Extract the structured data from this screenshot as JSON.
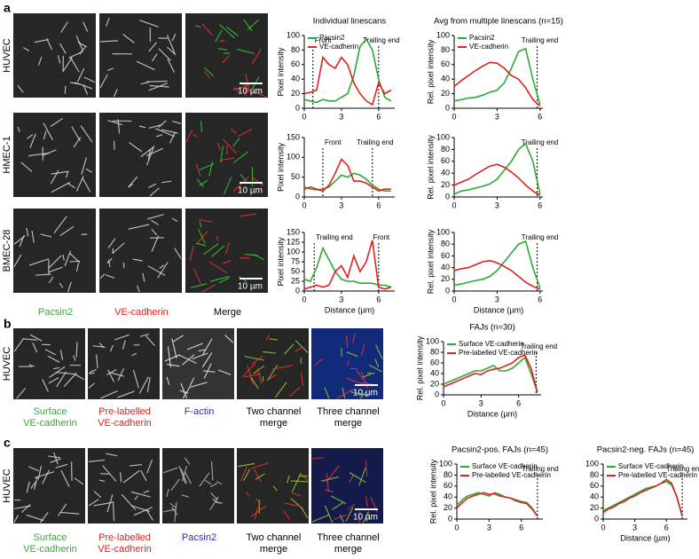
{
  "figure": {
    "panels": [
      {
        "label": "a",
        "rows": [
          "HUVEC",
          "HMEC-1",
          "BMEC-28"
        ],
        "images": [
          {
            "lines": [
              "Pacsin2"
            ],
            "color": "#3aa63a"
          },
          {
            "lines": [
              "VE-cadherin"
            ],
            "color": "#e0221e"
          },
          {
            "lines": [
              "Merge"
            ],
            "color": "#000000"
          }
        ]
      },
      {
        "label": "b",
        "rows": [
          "HUVEC"
        ],
        "images": [
          {
            "lines": [
              "Surface",
              "VE-cadherin"
            ],
            "color": "#3aa63a"
          },
          {
            "lines": [
              "Pre-labelled",
              "VE-cadherin"
            ],
            "color": "#e0221e"
          },
          {
            "lines": [
              "F-actin"
            ],
            "color": "#2b2bb0"
          },
          {
            "lines": [
              "Two channel",
              "merge"
            ],
            "color": "#000000"
          },
          {
            "lines": [
              "Three channel",
              "merge"
            ],
            "color": "#000000"
          }
        ]
      },
      {
        "label": "c",
        "rows": [
          "HUVEC"
        ],
        "images": [
          {
            "lines": [
              "Surface",
              "VE-cadherin"
            ],
            "color": "#3aa63a"
          },
          {
            "lines": [
              "Pre-labelled",
              "VE-cadherin"
            ],
            "color": "#e0221e"
          },
          {
            "lines": [
              "Pacsin2"
            ],
            "color": "#2b2bb0"
          },
          {
            "lines": [
              "Two channel",
              "merge"
            ],
            "color": "#000000"
          },
          {
            "lines": [
              "Three channel",
              "merge"
            ],
            "color": "#000000"
          }
        ]
      }
    ],
    "scale_bars": [
      "10 µm",
      "10 µm",
      "10 µm",
      "10 µm",
      "10 µm"
    ]
  },
  "chart_data": [
    {
      "type": "line",
      "title": "Individual linescans",
      "ylabel": "Pixel intensity",
      "x": [
        0,
        0.5,
        1,
        1.5,
        2,
        2.5,
        3,
        3.5,
        4,
        4.5,
        5,
        5.5,
        6,
        6.5,
        7
      ],
      "xlim": [
        0,
        7.3
      ],
      "xticks": [
        0,
        3,
        6
      ],
      "ylim": [
        0,
        100
      ],
      "yticks": [
        0,
        20,
        40,
        60,
        80,
        100
      ],
      "series": [
        {
          "name": "Pacsin2",
          "color": "#2ea836",
          "values": [
            12,
            10,
            8,
            12,
            10,
            10,
            15,
            20,
            45,
            85,
            95,
            80,
            40,
            15,
            10
          ]
        },
        {
          "name": "VE-cadherin",
          "color": "#e0221e",
          "values": [
            20,
            22,
            25,
            70,
            60,
            55,
            70,
            60,
            35,
            20,
            10,
            5,
            35,
            20,
            25
          ]
        }
      ],
      "annotations": [
        {
          "text": "Front",
          "x": 0.7
        },
        {
          "text": "Trailing end",
          "x": 6
        }
      ]
    },
    {
      "type": "line",
      "title": "Avg from multiple linescans (n=15)",
      "ylabel": "Rel. pixel intensity",
      "x": [
        0,
        0.5,
        1,
        1.5,
        2,
        2.5,
        3,
        3.5,
        4,
        4.5,
        5,
        5.5,
        6
      ],
      "xlim": [
        0,
        6.2
      ],
      "xticks": [
        0,
        3,
        6
      ],
      "ylim": [
        0,
        100
      ],
      "yticks": [
        0,
        20,
        40,
        60,
        80,
        100
      ],
      "series": [
        {
          "name": "Pacsin2",
          "color": "#2ea836",
          "values": [
            10,
            12,
            14,
            15,
            18,
            22,
            25,
            35,
            55,
            78,
            82,
            40,
            5
          ]
        },
        {
          "name": "VE-cadherin",
          "color": "#e0221e",
          "values": [
            30,
            38,
            45,
            52,
            58,
            63,
            62,
            55,
            45,
            40,
            28,
            12,
            3
          ]
        }
      ],
      "annotations": [
        {
          "text": "Trailing end",
          "x": 5.8
        }
      ]
    },
    {
      "type": "line",
      "ylabel": "Pixel intensity",
      "x": [
        0,
        0.5,
        1,
        1.5,
        2,
        2.5,
        3,
        3.5,
        4,
        4.5,
        5,
        5.5,
        6,
        6.5,
        7
      ],
      "xlim": [
        0,
        7.3
      ],
      "xticks": [
        0,
        3,
        6
      ],
      "ylim": [
        0,
        150
      ],
      "yticks": [
        0,
        50,
        100,
        150
      ],
      "series": [
        {
          "color": "#2ea836",
          "values": [
            25,
            20,
            18,
            20,
            25,
            40,
            55,
            50,
            60,
            55,
            45,
            30,
            20,
            15,
            15
          ]
        },
        {
          "color": "#e0221e",
          "values": [
            20,
            25,
            20,
            15,
            30,
            60,
            95,
            80,
            40,
            40,
            35,
            25,
            15,
            20,
            20
          ]
        }
      ],
      "annotations": [
        {
          "text": "Front",
          "x": 1.5
        },
        {
          "text": "Trailing end",
          "x": 5.5
        }
      ]
    },
    {
      "type": "line",
      "ylabel": "Rel. pixel intensity",
      "x": [
        0,
        0.5,
        1,
        1.5,
        2,
        2.5,
        3,
        3.5,
        4,
        4.5,
        5,
        5.5,
        6
      ],
      "xlim": [
        0,
        6.2
      ],
      "xticks": [
        0,
        3,
        6
      ],
      "ylim": [
        0,
        100
      ],
      "yticks": [
        0,
        20,
        40,
        60,
        80,
        100
      ],
      "series": [
        {
          "color": "#2ea836",
          "values": [
            5,
            10,
            12,
            15,
            18,
            22,
            30,
            45,
            60,
            80,
            90,
            60,
            5
          ]
        },
        {
          "color": "#e0221e",
          "values": [
            20,
            25,
            30,
            38,
            45,
            52,
            55,
            50,
            42,
            32,
            20,
            10,
            3
          ]
        }
      ],
      "annotations": [
        {
          "text": "Trailing end",
          "x": 5.8
        }
      ]
    },
    {
      "type": "line",
      "ylabel": "Pixel intensity",
      "xlabel": "Distance (µm)",
      "x": [
        0,
        0.5,
        1,
        1.5,
        2,
        2.5,
        3,
        3.5,
        4,
        4.5,
        5,
        5.5,
        6,
        6.5,
        7
      ],
      "xlim": [
        0,
        7.3
      ],
      "xticks": [
        0,
        3,
        6
      ],
      "ylim": [
        0,
        150
      ],
      "yticks": [
        0,
        25,
        50,
        75,
        100,
        125,
        150
      ],
      "series": [
        {
          "color": "#2ea836",
          "values": [
            30,
            25,
            60,
            110,
            80,
            50,
            30,
            25,
            25,
            20,
            20,
            20,
            15,
            15,
            10
          ]
        },
        {
          "color": "#e0221e",
          "values": [
            5,
            10,
            15,
            10,
            15,
            50,
            65,
            35,
            90,
            50,
            75,
            130,
            10,
            5,
            10
          ]
        }
      ],
      "annotations": [
        {
          "text": "Trailing end",
          "x": 0.8
        },
        {
          "text": "Front",
          "x": 6
        }
      ]
    },
    {
      "type": "line",
      "ylabel": "Rel. pixel intensity",
      "xlabel": "Distance (µm)",
      "x": [
        0,
        0.5,
        1,
        1.5,
        2,
        2.5,
        3,
        3.5,
        4,
        4.5,
        5,
        5.5,
        6
      ],
      "xlim": [
        0,
        6.2
      ],
      "xticks": [
        0,
        3,
        6
      ],
      "ylim": [
        0,
        100
      ],
      "yticks": [
        0,
        20,
        40,
        60,
        80,
        100
      ],
      "series": [
        {
          "color": "#2ea836",
          "values": [
            10,
            12,
            15,
            18,
            20,
            25,
            35,
            50,
            65,
            80,
            85,
            40,
            5
          ]
        },
        {
          "color": "#e0221e",
          "values": [
            35,
            38,
            40,
            45,
            50,
            52,
            48,
            42,
            35,
            25,
            15,
            8,
            3
          ]
        }
      ],
      "annotations": [
        {
          "text": "Trailing end",
          "x": 5.8
        }
      ]
    },
    {
      "type": "line",
      "title": "FAJs (n=30)",
      "ylabel": "Rel. pixel intensity",
      "xlabel": "Distance (µm)",
      "x": [
        0,
        0.5,
        1,
        1.5,
        2,
        2.5,
        3,
        3.5,
        4,
        4.5,
        5,
        5.5,
        6,
        6.5,
        7,
        7.5
      ],
      "xlim": [
        0,
        7.8
      ],
      "xticks": [
        0,
        3,
        6
      ],
      "ylim": [
        0,
        100
      ],
      "yticks": [
        0,
        20,
        40,
        60,
        80,
        100
      ],
      "series": [
        {
          "name": "Surface VE-cadherin",
          "color": "#2ea836",
          "values": [
            20,
            25,
            30,
            35,
            40,
            45,
            45,
            50,
            55,
            45,
            45,
            50,
            60,
            70,
            40,
            5
          ]
        },
        {
          "name": "Pre-labelled VE-cadherin",
          "color": "#e0221e",
          "values": [
            15,
            20,
            25,
            30,
            35,
            40,
            38,
            45,
            48,
            50,
            55,
            60,
            70,
            75,
            50,
            5
          ]
        }
      ],
      "annotations": [
        {
          "text": "Trailing end",
          "x": 7.4
        }
      ]
    },
    {
      "type": "line",
      "title": "Pacsin2-pos. FAJs (n=45)",
      "ylabel": "Rel. pixel intensity",
      "x": [
        0,
        0.5,
        1,
        1.5,
        2,
        2.5,
        3,
        3.5,
        4,
        4.5,
        5,
        5.5,
        6,
        6.5,
        7,
        7.5
      ],
      "xlim": [
        0,
        8
      ],
      "xticks": [
        0,
        3,
        6
      ],
      "ylim": [
        0,
        100
      ],
      "yticks": [
        0,
        20,
        40,
        60,
        80,
        100
      ],
      "series": [
        {
          "name": "Surface VE-cadherin",
          "color": "#2ea836",
          "values": [
            25,
            35,
            42,
            45,
            48,
            45,
            42,
            48,
            45,
            40,
            38,
            35,
            32,
            30,
            20,
            5
          ]
        },
        {
          "name": "Pre-labelled VE-cadherin",
          "color": "#e0221e",
          "values": [
            20,
            30,
            38,
            42,
            45,
            48,
            45,
            46,
            42,
            40,
            38,
            33,
            30,
            28,
            18,
            5
          ]
        }
      ],
      "annotations": [
        {
          "text": "Trailing end",
          "x": 7.5
        }
      ]
    },
    {
      "type": "line",
      "title": "Pacsin2-neg. FAJs (n=45)",
      "xlabel": "Distance (µm)",
      "x": [
        0,
        0.5,
        1,
        1.5,
        2,
        2.5,
        3,
        3.5,
        4,
        4.5,
        5,
        5.5,
        6,
        6.5,
        7,
        7.5
      ],
      "xlim": [
        0,
        8
      ],
      "xticks": [
        0,
        3,
        6
      ],
      "ylim": [
        0,
        100
      ],
      "yticks": [
        0,
        20,
        40,
        60,
        80,
        100
      ],
      "series": [
        {
          "name": "Surface VE-cadherin",
          "color": "#2ea836",
          "values": [
            15,
            20,
            25,
            30,
            35,
            40,
            45,
            50,
            55,
            58,
            60,
            65,
            68,
            62,
            40,
            5
          ]
        },
        {
          "name": "Pre-labelled VE-cadherin",
          "color": "#e0221e",
          "values": [
            12,
            18,
            22,
            28,
            32,
            38,
            42,
            48,
            52,
            56,
            60,
            65,
            72,
            65,
            40,
            5
          ]
        }
      ],
      "annotations": [
        {
          "text": "Trailing end",
          "x": 7.5
        }
      ]
    }
  ]
}
